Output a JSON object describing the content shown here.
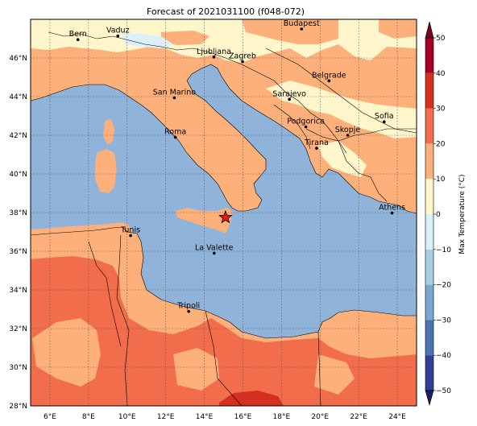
{
  "title": "Forecast of 2021031100 (f048-072)",
  "colors": {
    "sea": "#8fb3d9",
    "band_0_10": "#fff6cc",
    "band_10_20": "#fdb07a",
    "band_20_30": "#f26d4b",
    "band_30_40": "#d5301f",
    "band_neg": "#ddf0f7",
    "border": "#000000",
    "grid": "#555555"
  },
  "map": {
    "lon_range": [
      5,
      25
    ],
    "lat_range": [
      28,
      48
    ],
    "lon_ticks": [
      "6°E",
      "8°E",
      "10°E",
      "12°E",
      "14°E",
      "16°E",
      "18°E",
      "20°E",
      "22°E",
      "24°E"
    ],
    "lat_ticks": [
      "28°N",
      "30°N",
      "32°N",
      "34°N",
      "36°N",
      "38°N",
      "40°N",
      "42°N",
      "44°N",
      "46°N"
    ],
    "lon_tick_values": [
      6,
      8,
      10,
      12,
      14,
      16,
      18,
      20,
      22,
      24
    ],
    "lat_tick_values": [
      28,
      30,
      32,
      34,
      36,
      38,
      40,
      42,
      44,
      46
    ],
    "grid": true
  },
  "cities": [
    {
      "name": "Bern",
      "lon": 7.45,
      "lat": 46.95
    },
    {
      "name": "Vaduz",
      "lon": 9.52,
      "lat": 47.14
    },
    {
      "name": "Budapest",
      "lon": 19.04,
      "lat": 47.5
    },
    {
      "name": "Ljubljana",
      "lon": 14.5,
      "lat": 46.05
    },
    {
      "name": "Zagreb",
      "lon": 15.98,
      "lat": 45.81
    },
    {
      "name": "Belgrade",
      "lon": 20.46,
      "lat": 44.82
    },
    {
      "name": "San Marino",
      "lon": 12.45,
      "lat": 43.94
    },
    {
      "name": "Sarajevo",
      "lon": 18.41,
      "lat": 43.86
    },
    {
      "name": "Sofia",
      "lon": 23.32,
      "lat": 42.7
    },
    {
      "name": "Podgorica",
      "lon": 19.26,
      "lat": 42.44
    },
    {
      "name": "Skopje",
      "lon": 21.43,
      "lat": 42.0
    },
    {
      "name": "Roma",
      "lon": 12.5,
      "lat": 41.9
    },
    {
      "name": "Tirana",
      "lon": 19.82,
      "lat": 41.33
    },
    {
      "name": "Athens",
      "lon": 23.73,
      "lat": 37.98
    },
    {
      "name": "Tunis",
      "lon": 10.18,
      "lat": 36.81
    },
    {
      "name": "La Valette",
      "lon": 14.51,
      "lat": 35.9
    },
    {
      "name": "Tripoli",
      "lon": 13.19,
      "lat": 32.89
    }
  ],
  "marker": {
    "symbol": "star",
    "lon": 15.1,
    "lat": 37.75,
    "color": "#e31a1c"
  },
  "colorbar": {
    "label": "Max Temperature (°C)",
    "ticks": [
      "50",
      "40",
      "30",
      "20",
      "10",
      "0",
      "−10",
      "−20",
      "−30",
      "−40",
      "−50"
    ],
    "tick_values": [
      50,
      40,
      30,
      20,
      10,
      0,
      -10,
      -20,
      -30,
      -40,
      -50
    ],
    "bands": [
      {
        "from": 40,
        "to": 50,
        "color": "#a50026"
      },
      {
        "from": 30,
        "to": 40,
        "color": "#d5301f"
      },
      {
        "from": 20,
        "to": 30,
        "color": "#f26d4b"
      },
      {
        "from": 10,
        "to": 20,
        "color": "#fdb07a"
      },
      {
        "from": 0,
        "to": 10,
        "color": "#fff6cc"
      },
      {
        "from": -10,
        "to": 0,
        "color": "#ddf0f7"
      },
      {
        "from": -20,
        "to": -10,
        "color": "#a9cfe5"
      },
      {
        "from": -30,
        "to": -20,
        "color": "#7aa7d0"
      },
      {
        "from": -40,
        "to": -30,
        "color": "#4a73b3"
      },
      {
        "from": -50,
        "to": -40,
        "color": "#2f3f96"
      }
    ],
    "extend_top_color": "#7a0021",
    "extend_bottom_color": "#1a1f6b"
  }
}
